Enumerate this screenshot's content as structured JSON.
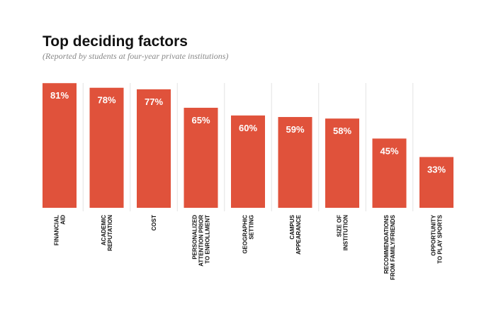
{
  "chart_data": {
    "type": "bar",
    "title": "Top deciding factors",
    "subtitle": "(Reported by students at four-year private institutions)",
    "categories": [
      "FINANCIAL\nAID",
      "ACADEMIC\nREPUTATION",
      "COST",
      "PERSONALIZED\nATTENTION PRIOR\nTO ENROLLMENT",
      "GEOGRAPHIC\nSETTING",
      "CAMPUS\nAPPEARANCE",
      "SIZE OF\nINSTITUTION",
      "RECOMMENDATIONS\nFROM FAMILY/FRIENDS",
      "OPPORTUNITY\nTO PLAY SPORTS"
    ],
    "values": [
      81,
      78,
      77,
      65,
      60,
      59,
      58,
      45,
      33
    ],
    "value_labels": [
      "81%",
      "78%",
      "77%",
      "65%",
      "60%",
      "59%",
      "58%",
      "45%",
      "33%"
    ],
    "color": "#e0523b"
  }
}
